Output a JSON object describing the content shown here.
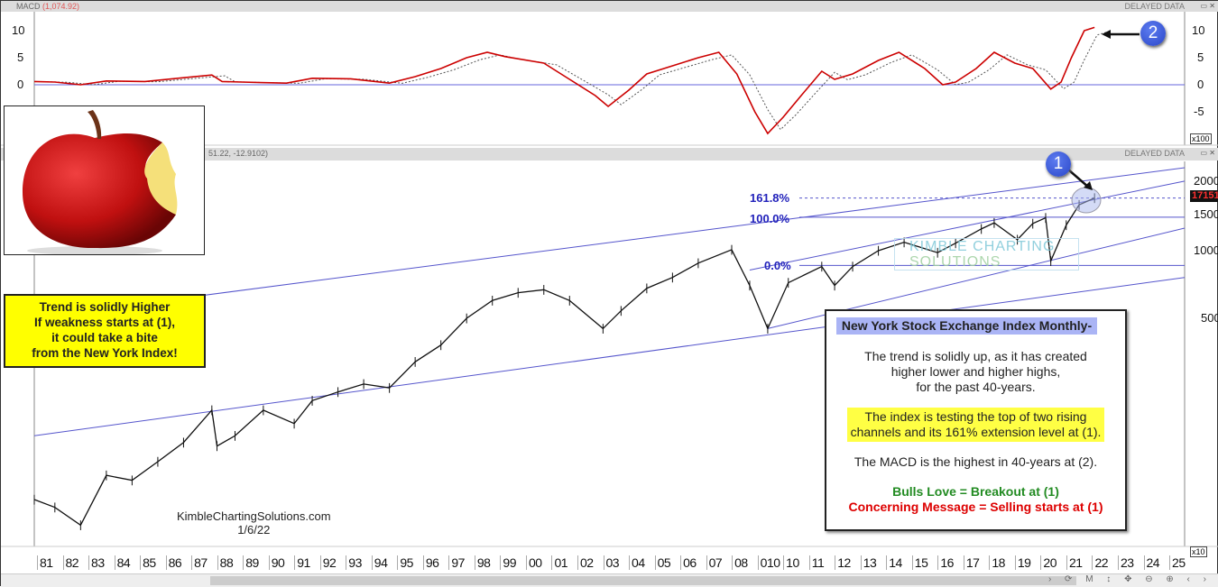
{
  "macd_panel": {
    "title": "MACD",
    "value": "(1,074.92)",
    "delayed": "DELAYED DATA",
    "multiplier": "x100",
    "yticks": [
      "10",
      "5",
      "0",
      "-5"
    ]
  },
  "price_panel": {
    "header_values": "51.22, -12.9102)",
    "delayed": "DELAYED DATA",
    "multiplier": "x10",
    "yticks": [
      "2000",
      "1500",
      "1000",
      "500"
    ],
    "last_price": "17151"
  },
  "window_buttons": [
    "▭",
    "✕"
  ],
  "apple_box": {
    "lines": [
      "Trend is solidly Higher",
      "If weakness starts at (1),",
      "it could take a bite",
      "from the New York Index!"
    ]
  },
  "info_box": {
    "title": "New York Stock Exchange Index Monthly-",
    "p1": [
      "The trend is solidly up, as it has created",
      "higher lower and higher highs,",
      "for the past 40-years."
    ],
    "p2": [
      "The index is testing the top of two rising",
      "channels and its 161% extension level at (1)."
    ],
    "p3": "The MACD is the highest in 40-years at (2).",
    "bull": "Bulls Love = Breakout at (1)",
    "bear": "Concerning Message = Selling starts at (1)"
  },
  "credit": {
    "site": "KimbleChartingSolutions.com",
    "date": "1/6/22"
  },
  "watermark": {
    "line1": "KIMBLE CHARTING",
    "line2": "SOLUTIONS"
  },
  "badges": [
    "1",
    "2"
  ],
  "xaxis_labels": [
    "81",
    "82",
    "83",
    "84",
    "85",
    "86",
    "87",
    "88",
    "89",
    "90",
    "91",
    "92",
    "93",
    "94",
    "95",
    "96",
    "97",
    "98",
    "99",
    "00",
    "01",
    "02",
    "03",
    "04",
    "05",
    "06",
    "07",
    "08",
    "010",
    "10",
    "11",
    "12",
    "13",
    "14",
    "15",
    "16",
    "17",
    "18",
    "19",
    "20",
    "21",
    "22",
    "23",
    "24",
    "25"
  ],
  "toolbar": "› ⟳ M ↕ ✥ ⊖ ⊕ ‹ ›",
  "colors": {
    "price": "#111111",
    "macd": "#cc0000",
    "signal": "#555555",
    "lines": "#5555cc",
    "highlight": "#ffff00",
    "bull": "#228B22",
    "bear": "#dd0000"
  },
  "chart_data": [
    {
      "type": "line",
      "title": "MACD",
      "ylim": [
        -10,
        12
      ],
      "x_range": [
        1980.7,
        2025.4
      ],
      "series": [
        {
          "name": "MACD",
          "values": [
            [
              1980.7,
              0.6
            ],
            [
              1981.5,
              0.5
            ],
            [
              1982.5,
              0
            ],
            [
              1983.5,
              0.7
            ],
            [
              1985,
              0.6
            ],
            [
              1986.5,
              1.3
            ],
            [
              1987.6,
              1.8
            ],
            [
              1988,
              0.6
            ],
            [
              1989.5,
              0.4
            ],
            [
              1990.5,
              0.3
            ],
            [
              1991.5,
              1.2
            ],
            [
              1993,
              1.1
            ],
            [
              1994.5,
              0.3
            ],
            [
              1995.5,
              1.5
            ],
            [
              1996.5,
              3
            ],
            [
              1997.5,
              5
            ],
            [
              1998.3,
              6
            ],
            [
              1999,
              5.2
            ],
            [
              2000.5,
              4
            ],
            [
              2001.5,
              1
            ],
            [
              2002.5,
              -2
            ],
            [
              2003,
              -4
            ],
            [
              2003.8,
              -1
            ],
            [
              2004.5,
              2
            ],
            [
              2005.5,
              3.5
            ],
            [
              2006.5,
              5
            ],
            [
              2007.3,
              6
            ],
            [
              2008,
              2
            ],
            [
              2008.7,
              -5
            ],
            [
              2009.2,
              -9
            ],
            [
              2009.8,
              -6
            ],
            [
              2010.5,
              -2
            ],
            [
              2011.3,
              2.5
            ],
            [
              2011.8,
              1
            ],
            [
              2012.5,
              2
            ],
            [
              2013.5,
              4.5
            ],
            [
              2014.3,
              6
            ],
            [
              2015.3,
              3
            ],
            [
              2016,
              0
            ],
            [
              2016.5,
              0.5
            ],
            [
              2017.3,
              3
            ],
            [
              2018,
              6
            ],
            [
              2018.8,
              4
            ],
            [
              2019.5,
              3
            ],
            [
              2020.2,
              -0.8
            ],
            [
              2020.6,
              0.5
            ],
            [
              2021,
              5
            ],
            [
              2021.5,
              10
            ],
            [
              2021.9,
              10.6
            ]
          ]
        }
      ]
    },
    {
      "type": "line",
      "title": "New York Stock Exchange Index Monthly",
      "yscale": "log",
      "ylim": [
        55,
        2300
      ],
      "x_range": [
        1980.7,
        2025.4
      ],
      "series": [
        {
          "name": "NYSE",
          "values": [
            [
              1980.7,
              78
            ],
            [
              1981.5,
              72
            ],
            [
              1982.5,
              60
            ],
            [
              1983.5,
              100
            ],
            [
              1984.5,
              95
            ],
            [
              1985.5,
              115
            ],
            [
              1986.5,
              140
            ],
            [
              1987.6,
              195
            ],
            [
              1987.8,
              135
            ],
            [
              1988.5,
              150
            ],
            [
              1989.6,
              195
            ],
            [
              1990.8,
              170
            ],
            [
              1991.5,
              215
            ],
            [
              1992.5,
              235
            ],
            [
              1993.5,
              255
            ],
            [
              1994.5,
              245
            ],
            [
              1995.5,
              320
            ],
            [
              1996.5,
              380
            ],
            [
              1997.5,
              500
            ],
            [
              1998.5,
              600
            ],
            [
              1999.5,
              650
            ],
            [
              2000.5,
              670
            ],
            [
              2001.5,
              600
            ],
            [
              2002.8,
              450
            ],
            [
              2003.5,
              540
            ],
            [
              2004.5,
              680
            ],
            [
              2005.5,
              760
            ],
            [
              2006.5,
              880
            ],
            [
              2007.8,
              1010
            ],
            [
              2008.5,
              700
            ],
            [
              2009.2,
              450
            ],
            [
              2010,
              720
            ],
            [
              2011.3,
              850
            ],
            [
              2011.8,
              700
            ],
            [
              2012.5,
              850
            ],
            [
              2013.5,
              1000
            ],
            [
              2014.5,
              1090
            ],
            [
              2015.8,
              980
            ],
            [
              2016.5,
              1080
            ],
            [
              2017.5,
              1250
            ],
            [
              2018,
              1330
            ],
            [
              2018.9,
              1120
            ],
            [
              2019.5,
              1320
            ],
            [
              2020,
              1400
            ],
            [
              2020.2,
              900
            ],
            [
              2020.8,
              1300
            ],
            [
              2021.3,
              1600
            ],
            [
              2021.9,
              1715
            ]
          ]
        }
      ],
      "trendlines": [
        [
          [
            1980.7,
            505
          ],
          [
            2025.4,
            2340
          ]
        ],
        [
          [
            1980.7,
            150
          ],
          [
            2025.4,
            760
          ]
        ],
        [
          [
            2009.2,
            450
          ],
          [
            2025.4,
            1260
          ]
        ],
        [
          [
            2008.5,
            820
          ],
          [
            2025.4,
            2040
          ]
        ]
      ],
      "fib_levels": [
        {
          "label": "161.8%",
          "value": 1715,
          "dashed": true
        },
        {
          "label": "100.0%",
          "value": 1410
        },
        {
          "label": "0.0%",
          "value": 860
        }
      ]
    }
  ]
}
